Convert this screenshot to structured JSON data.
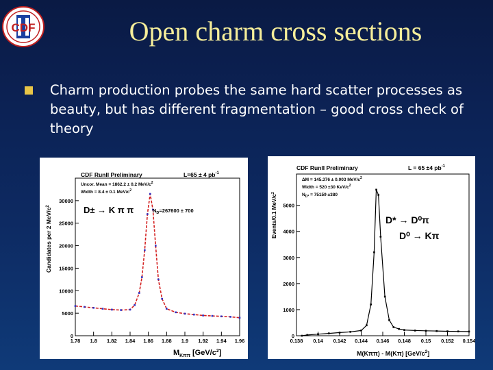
{
  "slide": {
    "title": "Open charm cross sections",
    "bullet": "Charm production probes the same hard scatter processes as beauty, but has different fragmentation – good cross check of theory",
    "logo_text": "CDF"
  },
  "colors": {
    "background": "#0c2255",
    "title": "#f6ee9a",
    "bullet_mark": "#e8c547",
    "fit_left": "#d42020",
    "points_left": "#3030c0",
    "points_right": "#000000"
  },
  "chart_data": [
    {
      "type": "line",
      "title": "CDF RunII Preliminary",
      "lumi": "L=65 ± 4 pb",
      "lumi_exp": "-1",
      "stats": [
        {
          "base": "Uncor. Mean = 1862.2  ± 0.2 MeV/c",
          "exp": "2"
        },
        {
          "base": "Width = 8.4  ± 0.1 MeV/c",
          "exp": "2"
        }
      ],
      "decay": "D± → K π π",
      "yield_label": "N",
      "yield_sub": "D",
      "yield_value": "=267600 ± 700",
      "xlabel": "M",
      "xlabel_sub": "Kππ",
      "xlabel_unit": " [GeV/c",
      "ylabel": "Candidates per 2 MeV/c",
      "ylabel_exp": "2",
      "xlim": [
        1.78,
        1.96
      ],
      "ylim": [
        0,
        35000
      ],
      "x_ticks": [
        "1.78",
        "1.8",
        "1.82",
        "1.84",
        "1.86",
        "1.88",
        "1.9",
        "1.92",
        "1.94",
        "1.96"
      ],
      "y_ticks": [
        "0",
        "5000",
        "10000",
        "15000",
        "20000",
        "25000",
        "30000"
      ],
      "series": [
        {
          "x": [
            1.78,
            1.79,
            1.8,
            1.81,
            1.82,
            1.83,
            1.84,
            1.845,
            1.85,
            1.853,
            1.856,
            1.859,
            1.862,
            1.865,
            1.868,
            1.871,
            1.875,
            1.88,
            1.89,
            1.9,
            1.91,
            1.92,
            1.93,
            1.94,
            1.95,
            1.96
          ],
          "y": [
            6600,
            6400,
            6200,
            6000,
            5800,
            5700,
            5800,
            6800,
            9500,
            13000,
            19000,
            27000,
            31500,
            28000,
            20000,
            12500,
            8200,
            6000,
            5200,
            4900,
            4700,
            4500,
            4400,
            4300,
            4200,
            4000
          ]
        }
      ]
    },
    {
      "type": "line",
      "title": "CDF RunII Preliminary",
      "lumi": "L = 65 ±4 pb",
      "lumi_exp": "-1",
      "stats": [
        {
          "base": "ΔM = 145.376  ± 0.003 MeV/c",
          "exp": "2"
        },
        {
          "base": "Width = 520  ±30 KeV/c",
          "exp": "2"
        },
        {
          "base": "N",
          "sub": "D*",
          "rest": " = 75159 ±380"
        }
      ],
      "decay1": "D* → D⁰π",
      "decay2": "D⁰ → Kπ",
      "xlabel": "M(Kππ) - M(Kπ) [GeV/c",
      "xlabel_exp": "2",
      "ylabel": "Events/0.1 MeV/c",
      "ylabel_exp": "2",
      "xlim": [
        0.138,
        0.154
      ],
      "ylim": [
        0,
        6200
      ],
      "x_ticks": [
        "0.138",
        "0.14",
        "0.142",
        "0.144",
        "0.146",
        "0.148",
        "0.15",
        "0.152",
        "0.154"
      ],
      "y_ticks": [
        "0",
        "1000",
        "2000",
        "3000",
        "4000",
        "5000"
      ],
      "series": [
        {
          "x": [
            0.1385,
            0.139,
            0.14,
            0.141,
            0.142,
            0.143,
            0.144,
            0.1445,
            0.1449,
            0.1452,
            0.1454,
            0.1456,
            0.1458,
            0.1462,
            0.1466,
            0.147,
            0.1475,
            0.148,
            0.149,
            0.15,
            0.151,
            0.152,
            0.153,
            0.154
          ],
          "y": [
            0,
            30,
            60,
            90,
            120,
            150,
            200,
            400,
            1200,
            3200,
            5600,
            5400,
            3800,
            1500,
            600,
            330,
            260,
            220,
            200,
            190,
            180,
            170,
            165,
            160
          ]
        }
      ]
    }
  ]
}
